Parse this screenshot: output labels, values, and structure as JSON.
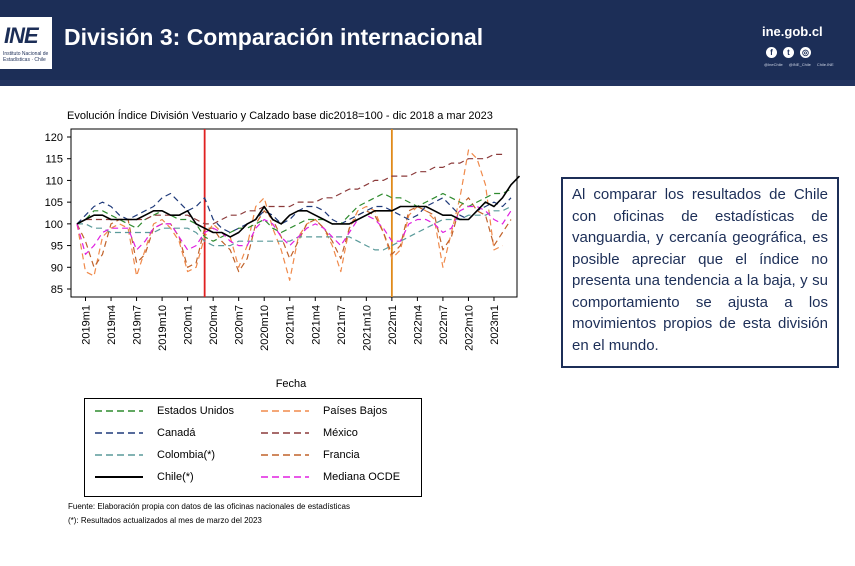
{
  "header": {
    "logo_text": "INE",
    "logo_subtitle": "Instituto Nacional de Estadísticas · Chile",
    "title": "División 3: Comparación internacional",
    "site": "ine.gob.cl",
    "social_handles": [
      "@IneChile",
      "@INE_Chile",
      "Chile.INE"
    ],
    "colors": {
      "header_bg": "#1c2e57",
      "text_box_border": "#1c2e57"
    }
  },
  "description": "Al comparar los resultados de Chile con oficinas de estadísticas de vanguardia, y cercanía geográfica, es posible apreciar que el índice no presenta una tendencia a la baja, y su comportamiento se ajusta a los movimientos propios de esta división en el mundo.",
  "footer": {
    "source": "Fuente: Elaboración propia con datos de las oficinas nacionales de estadísticas",
    "note": "(*): Resultados actualizados al mes de marzo del 2023"
  },
  "chart_data": {
    "type": "line",
    "title": "Evolución Índice División Vestuario y Calzado base dic2018=100 - dic 2018 a mar 2023",
    "xlabel": "Fecha",
    "ylabel": "",
    "ylim": [
      85,
      120
    ],
    "yticks": [
      85,
      90,
      95,
      100,
      105,
      110,
      115,
      120
    ],
    "x_tick_labels": [
      "2019m1",
      "2019m4",
      "2019m7",
      "2019m10",
      "2020m1",
      "2020m4",
      "2020m7",
      "2020m10",
      "2021m1",
      "2021m4",
      "2021m7",
      "2021m10",
      "2022m1",
      "2022m4",
      "2022m7",
      "2022m10",
      "2023m1"
    ],
    "x_tick_months": [
      "2019-01",
      "2019-04",
      "2019-07",
      "2019-10",
      "2020-01",
      "2020-04",
      "2020-07",
      "2020-10",
      "2021-01",
      "2021-04",
      "2021-07",
      "2021-10",
      "2022-01",
      "2022-04",
      "2022-07",
      "2022-10",
      "2023-01"
    ],
    "x_start": "2018-12",
    "x_end": "2023-03",
    "grid": false,
    "legend_position": "bottom",
    "vlines": [
      {
        "x": "2020-03",
        "color": "#e02020"
      },
      {
        "x": "2022-01",
        "color": "#e08a1a"
      }
    ],
    "series": [
      {
        "name": "Estados Unidos",
        "color": "#2e8b2e",
        "dash": "6,4",
        "values": [
          100,
          101,
          103,
          103,
          102,
          101,
          100,
          99,
          101,
          102,
          103,
          102,
          101,
          101,
          100,
          97,
          96,
          97,
          98,
          99,
          99,
          100,
          101,
          99,
          98,
          99,
          100,
          101,
          101,
          101,
          100,
          100,
          102,
          104,
          105,
          106,
          107,
          106,
          106,
          105,
          104,
          105,
          106,
          107,
          106,
          105,
          104,
          105,
          106,
          107,
          107,
          108
        ]
      },
      {
        "name": "Canadá",
        "color": "#1f3a7a",
        "dash": "6,4",
        "values": [
          100,
          102,
          104,
          105,
          104,
          102,
          101,
          102,
          103,
          104,
          106,
          107,
          105,
          103,
          104,
          106,
          101,
          99,
          98,
          99,
          100,
          101,
          103,
          102,
          100,
          101,
          103,
          104,
          104,
          103,
          101,
          100,
          101,
          102,
          103,
          104,
          104,
          103,
          102,
          101,
          102,
          104,
          105,
          106,
          104,
          102,
          101,
          103,
          104,
          105,
          104,
          106
        ]
      },
      {
        "name": "Colombia(*)",
        "color": "#5a9a9a",
        "dash": "6,4",
        "values": [
          100,
          100,
          99,
          99,
          98,
          98,
          98,
          98,
          98,
          98,
          99,
          99,
          99,
          99,
          98,
          96,
          95,
          95,
          95,
          96,
          96,
          96,
          96,
          96,
          96,
          96,
          97,
          97,
          97,
          97,
          97,
          97,
          97,
          96,
          95,
          94,
          94,
          95,
          96,
          97,
          98,
          99,
          100,
          101,
          101,
          101,
          102,
          102,
          102,
          103,
          103,
          104
        ]
      },
      {
        "name": "Chile(*)",
        "color": "#000000",
        "dash": "",
        "values": [
          100,
          101,
          102,
          102,
          101,
          101,
          101,
          101,
          102,
          103,
          103,
          102,
          102,
          103,
          100,
          99,
          98,
          98,
          97,
          98,
          100,
          101,
          104,
          101,
          100,
          102,
          103,
          103,
          102,
          101,
          100,
          100,
          100,
          101,
          102,
          103,
          103,
          103,
          104,
          104,
          104,
          104,
          103,
          102,
          102,
          101,
          101,
          103,
          105,
          104,
          106,
          109,
          111
        ]
      },
      {
        "name": "Países Bajos",
        "color": "#f08a4b",
        "dash": "6,4",
        "values": [
          100,
          89,
          88,
          97,
          99,
          100,
          99,
          88,
          94,
          100,
          101,
          99,
          96,
          89,
          90,
          97,
          100,
          98,
          97,
          90,
          95,
          104,
          106,
          99,
          94,
          87,
          97,
          100,
          101,
          99,
          95,
          89,
          99,
          103,
          104,
          103,
          98,
          92,
          94,
          102,
          104,
          103,
          101,
          90,
          98,
          106,
          117,
          115,
          109,
          94,
          95
        ]
      },
      {
        "name": "México",
        "color": "#8b3a3a",
        "dash": "6,4",
        "values": [
          100,
          101,
          101,
          101,
          101,
          101,
          101,
          101,
          101,
          102,
          102,
          102,
          102,
          102,
          101,
          100,
          100,
          101,
          102,
          102,
          103,
          103,
          104,
          104,
          104,
          104,
          105,
          105,
          105,
          106,
          106,
          107,
          108,
          108,
          109,
          110,
          110,
          111,
          111,
          111,
          112,
          112,
          113,
          113,
          114,
          114,
          115,
          115,
          115,
          116,
          116
        ]
      },
      {
        "name": "Francia",
        "color": "#c0622a",
        "dash": "6,4",
        "values": [
          100,
          96,
          90,
          93,
          100,
          101,
          101,
          91,
          93,
          99,
          100,
          100,
          97,
          90,
          91,
          99,
          99,
          96,
          94,
          89,
          92,
          100,
          103,
          101,
          97,
          92,
          96,
          100,
          101,
          99,
          96,
          92,
          99,
          102,
          103,
          102,
          98,
          93,
          95,
          103,
          104,
          103,
          102,
          94,
          97,
          104,
          106,
          103,
          102,
          95,
          98,
          101
        ]
      },
      {
        "name": "Mediana OCDE",
        "color": "#e020e0",
        "dash": "6,4",
        "values": [
          100,
          93,
          95,
          98,
          99,
          99,
          99,
          94,
          96,
          99,
          100,
          100,
          97,
          94,
          95,
          98,
          99,
          98,
          96,
          95,
          95,
          99,
          101,
          100,
          97,
          95,
          97,
          99,
          100,
          99,
          97,
          95,
          98,
          101,
          102,
          101,
          99,
          96,
          96,
          100,
          101,
          101,
          100,
          98,
          99,
          103,
          104,
          104,
          103,
          101,
          100,
          103
        ]
      }
    ]
  }
}
